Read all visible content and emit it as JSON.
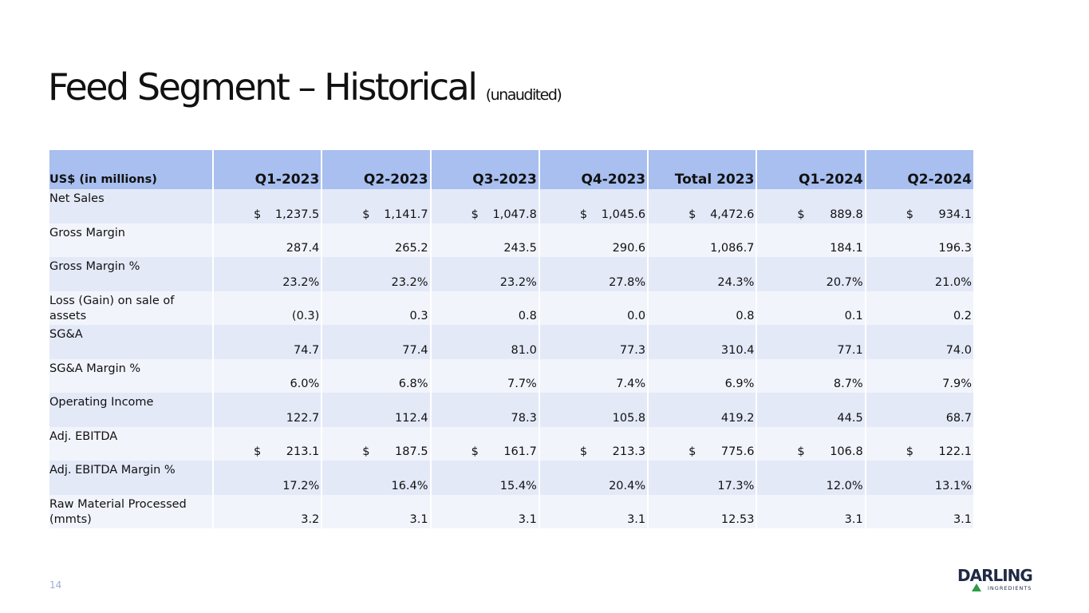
{
  "header": {
    "title": "Feed Segment – Historical",
    "subtitle": "(unaudited)"
  },
  "table": {
    "columns": [
      "US$ (in millions)",
      "Q1-2023",
      "Q2-2023",
      "Q3-2023",
      "Q4-2023",
      "Total 2023",
      "Q1-2024",
      "Q2-2024"
    ],
    "rows": [
      {
        "label": "Net Sales",
        "currency": "$",
        "values": [
          "1,237.5",
          "1,141.7",
          "1,047.8",
          "1,045.6",
          "4,472.6",
          "889.8",
          "934.1"
        ]
      },
      {
        "label": "Gross Margin",
        "values": [
          "287.4",
          "265.2",
          "243.5",
          "290.6",
          "1,086.7",
          "184.1",
          "196.3"
        ]
      },
      {
        "label": "Gross Margin %",
        "values": [
          "23.2%",
          "23.2%",
          "23.2%",
          "27.8%",
          "24.3%",
          "20.7%",
          "21.0%"
        ]
      },
      {
        "label": "Loss (Gain) on sale of assets",
        "values": [
          "(0.3)",
          "0.3",
          "0.8",
          "0.0",
          "0.8",
          "0.1",
          "0.2"
        ]
      },
      {
        "label": "SG&A",
        "values": [
          "74.7",
          "77.4",
          "81.0",
          "77.3",
          "310.4",
          "77.1",
          "74.0"
        ]
      },
      {
        "label": "SG&A Margin %",
        "values": [
          "6.0%",
          "6.8%",
          "7.7%",
          "7.4%",
          "6.9%",
          "8.7%",
          "7.9%"
        ]
      },
      {
        "label": "Operating Income",
        "values": [
          "122.7",
          "112.4",
          "78.3",
          "105.8",
          "419.2",
          "44.5",
          "68.7"
        ]
      },
      {
        "label": "Adj. EBITDA",
        "currency": "$",
        "values": [
          "213.1",
          "187.5",
          "161.7",
          "213.3",
          "775.6",
          "106.8",
          "122.1"
        ]
      },
      {
        "label": "Adj. EBITDA Margin %",
        "values": [
          "17.2%",
          "16.4%",
          "15.4%",
          "20.4%",
          "17.3%",
          "12.0%",
          "13.1%"
        ]
      },
      {
        "label": "Raw Material Processed (mmts)",
        "values": [
          "3.2",
          "3.1",
          "3.1",
          "3.1",
          "12.53",
          "3.1",
          "3.1"
        ]
      }
    ]
  },
  "footer": {
    "page": "14",
    "logo_name": "DARLING",
    "logo_sub": "INGREDIENTS"
  }
}
